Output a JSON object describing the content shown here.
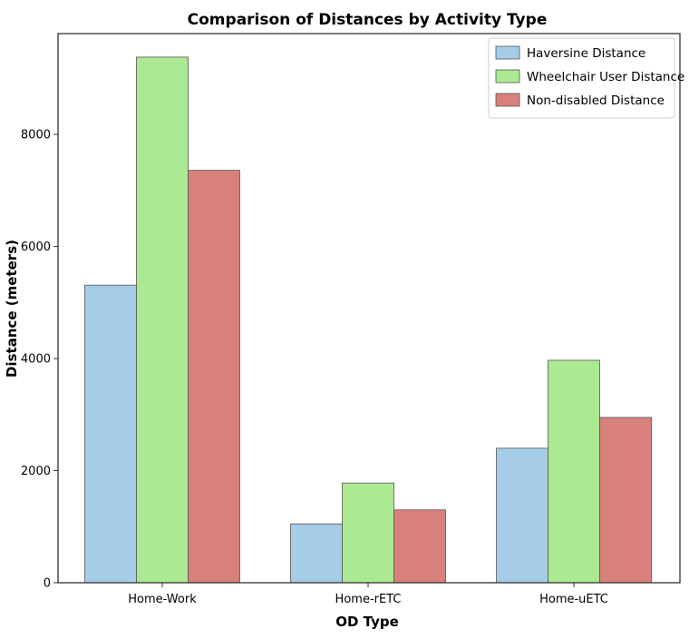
{
  "chart_data": {
    "type": "bar",
    "title": "Comparison of Distances by Activity Type",
    "xlabel": "OD Type",
    "ylabel": "Distance (meters)",
    "categories": [
      "Home-Work",
      "Home-rETC",
      "Home-uETC"
    ],
    "series": [
      {
        "name": "Haversine Distance",
        "values": [
          5310,
          1050,
          2400
        ],
        "color": "#a6cde8"
      },
      {
        "name": "Wheelchair User Distance",
        "values": [
          9380,
          1780,
          3970
        ],
        "color": "#abe993"
      },
      {
        "name": "Non-disabled Distance",
        "values": [
          7360,
          1300,
          2950
        ],
        "color": "#d8807c"
      }
    ],
    "ylim": [
      0,
      9800
    ],
    "yticks": [
      0,
      2000,
      4000,
      6000,
      8000
    ],
    "ytick_labels": [
      "0",
      "2000",
      "4000",
      "6000",
      "8000"
    ],
    "grid": false,
    "legend_position": "top-right"
  }
}
